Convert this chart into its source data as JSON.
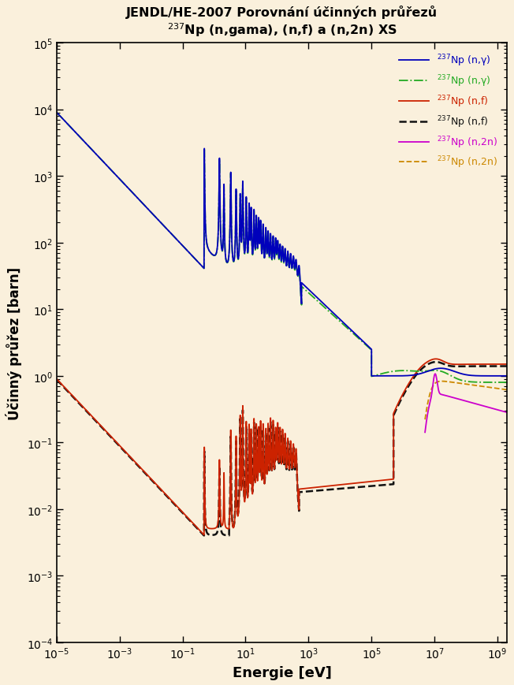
{
  "title_line1": "JENDL/HE-2007 Porovnání účinných průřezů",
  "title_line2": "$^{237}$Np (n,gama), (n,f) a (n,2n) XS",
  "xlabel": "Energie [eV]",
  "ylabel": "Účinný průřez [barn]",
  "xlim": [
    1e-05,
    2000000000.0
  ],
  "ylim": [
    0.0001,
    100000.0
  ],
  "background_color": "#FAF0DC",
  "plot_bg_color": "#FAF0DC",
  "legend_entries": [
    {
      "label": "$^{237}$Np (n,γ)",
      "color": "#0000BB",
      "ls": "solid",
      "lw": 1.3
    },
    {
      "label": "$^{237}$Np (n,γ)",
      "color": "#22AA22",
      "ls": "dashdot",
      "lw": 1.3
    },
    {
      "label": "$^{237}$Np (n,f)",
      "color": "#CC2200",
      "ls": "solid",
      "lw": 1.3
    },
    {
      "label": "$^{237}$Np (n,f)",
      "color": "#111111",
      "ls": "dashed",
      "lw": 1.8
    },
    {
      "label": "$^{237}$Np (n,2n)",
      "color": "#CC00CC",
      "ls": "solid",
      "lw": 1.3
    },
    {
      "label": "$^{237}$Np (n,2n)",
      "color": "#CC8800",
      "ls": "dashed",
      "lw": 1.3
    }
  ]
}
